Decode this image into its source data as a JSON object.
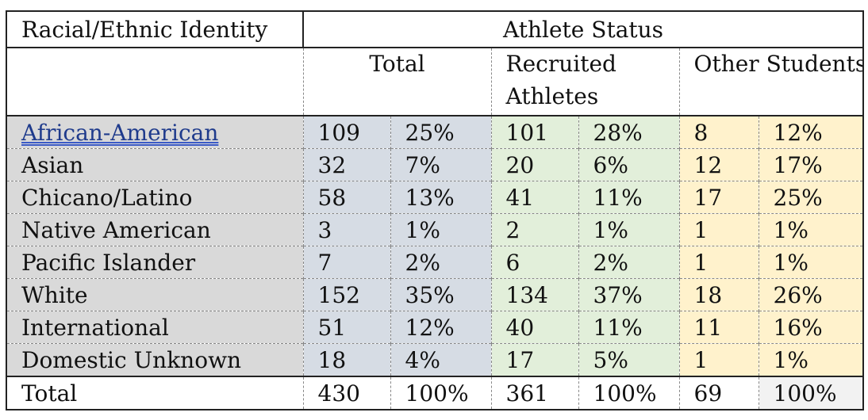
{
  "header": {
    "row_label": "Racial/Ethnic Identity",
    "group_title": "Athlete Status",
    "groups": [
      {
        "label": "Total"
      },
      {
        "label_line1": "Recruited",
        "label_line2": "Athletes"
      },
      {
        "label": "Other Students"
      }
    ]
  },
  "rows": [
    {
      "label": "African-American",
      "total_n": "109",
      "total_pct": "25%",
      "recruit_n": "101",
      "recruit_pct": "28%",
      "other_n": "8",
      "other_pct": "12%"
    },
    {
      "label": "Asian",
      "total_n": "32",
      "total_pct": "7%",
      "recruit_n": "20",
      "recruit_pct": "6%",
      "other_n": "12",
      "other_pct": "17%"
    },
    {
      "label": "Chicano/Latino",
      "total_n": "58",
      "total_pct": "13%",
      "recruit_n": "41",
      "recruit_pct": "11%",
      "other_n": "17",
      "other_pct": "25%"
    },
    {
      "label": "Native American",
      "total_n": "3",
      "total_pct": "1%",
      "recruit_n": "2",
      "recruit_pct": "1%",
      "other_n": "1",
      "other_pct": "1%"
    },
    {
      "label": "Pacific Islander",
      "total_n": "7",
      "total_pct": "2%",
      "recruit_n": "6",
      "recruit_pct": "2%",
      "other_n": "1",
      "other_pct": "1%"
    },
    {
      "label": "White",
      "total_n": "152",
      "total_pct": "35%",
      "recruit_n": "134",
      "recruit_pct": "37%",
      "other_n": "18",
      "other_pct": "26%"
    },
    {
      "label": "International",
      "total_n": "51",
      "total_pct": "12%",
      "recruit_n": "40",
      "recruit_pct": "11%",
      "other_n": "11",
      "other_pct": "16%"
    },
    {
      "label": "Domestic Unknown",
      "total_n": "18",
      "total_pct": "4%",
      "recruit_n": "17",
      "recruit_pct": "5%",
      "other_n": "1",
      "other_pct": "1%"
    }
  ],
  "totals": {
    "label": "Total",
    "total_n": "430",
    "total_pct": "100%",
    "recruit_n": "361",
    "recruit_pct": "100%",
    "other_n": "69",
    "other_pct": "100%"
  },
  "colors": {
    "label_bg": "#d9d9d9",
    "total_bg": "#d6dce4",
    "recruited_bg": "#e2efda",
    "other_bg": "#fff2cc",
    "totals_row_bg": "#f2f2f2",
    "link": "#1f3b8c"
  }
}
